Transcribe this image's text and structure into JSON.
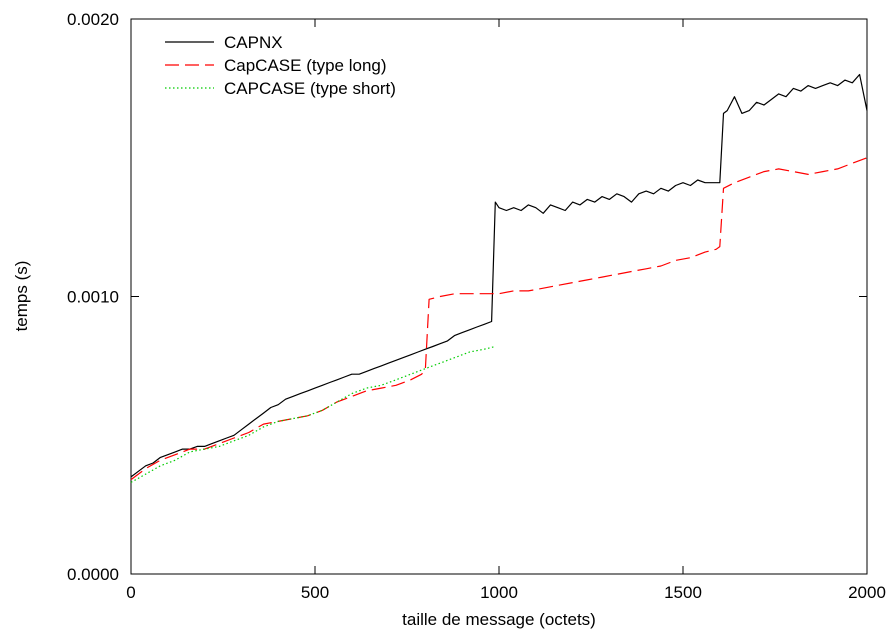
{
  "chart_data": {
    "type": "line",
    "xlabel": "taille de message (octets)",
    "ylabel": "temps (s)",
    "xlim": [
      0,
      2000
    ],
    "ylim": [
      0.0,
      0.002
    ],
    "x_ticks": [
      0,
      500,
      1000,
      1500,
      2000
    ],
    "x_tick_labels": [
      "0",
      "500",
      "1000",
      "1500",
      "2000"
    ],
    "y_ticks": [
      0.0,
      0.001,
      0.002
    ],
    "y_tick_labels": [
      "0.0000",
      "0.0010",
      "0.0020"
    ],
    "grid": false,
    "legend_position": "top-left",
    "series": [
      {
        "name": "CAPNX",
        "color": "#000000",
        "style": "solid",
        "points": [
          [
            0,
            0.00035
          ],
          [
            20,
            0.00037
          ],
          [
            40,
            0.00039
          ],
          [
            60,
            0.0004
          ],
          [
            80,
            0.00042
          ],
          [
            100,
            0.00043
          ],
          [
            120,
            0.00044
          ],
          [
            140,
            0.00045
          ],
          [
            160,
            0.00045
          ],
          [
            180,
            0.00046
          ],
          [
            200,
            0.00046
          ],
          [
            220,
            0.00047
          ],
          [
            240,
            0.00048
          ],
          [
            260,
            0.00049
          ],
          [
            280,
            0.0005
          ],
          [
            300,
            0.00052
          ],
          [
            320,
            0.00054
          ],
          [
            340,
            0.00056
          ],
          [
            360,
            0.00058
          ],
          [
            380,
            0.0006
          ],
          [
            400,
            0.00061
          ],
          [
            420,
            0.00063
          ],
          [
            440,
            0.00064
          ],
          [
            460,
            0.00065
          ],
          [
            480,
            0.00066
          ],
          [
            500,
            0.00067
          ],
          [
            520,
            0.00068
          ],
          [
            540,
            0.00069
          ],
          [
            560,
            0.0007
          ],
          [
            580,
            0.00071
          ],
          [
            600,
            0.00072
          ],
          [
            620,
            0.00072
          ],
          [
            640,
            0.00073
          ],
          [
            660,
            0.00074
          ],
          [
            680,
            0.00075
          ],
          [
            700,
            0.00076
          ],
          [
            720,
            0.00077
          ],
          [
            740,
            0.00078
          ],
          [
            760,
            0.00079
          ],
          [
            780,
            0.0008
          ],
          [
            800,
            0.00081
          ],
          [
            820,
            0.00082
          ],
          [
            840,
            0.00083
          ],
          [
            860,
            0.00084
          ],
          [
            880,
            0.00086
          ],
          [
            900,
            0.00087
          ],
          [
            920,
            0.00088
          ],
          [
            940,
            0.00089
          ],
          [
            960,
            0.0009
          ],
          [
            980,
            0.00091
          ],
          [
            990,
            0.00134
          ],
          [
            1000,
            0.00132
          ],
          [
            1020,
            0.00131
          ],
          [
            1040,
            0.00132
          ],
          [
            1060,
            0.00131
          ],
          [
            1080,
            0.00133
          ],
          [
            1100,
            0.00132
          ],
          [
            1120,
            0.0013
          ],
          [
            1140,
            0.00133
          ],
          [
            1160,
            0.00132
          ],
          [
            1180,
            0.00131
          ],
          [
            1200,
            0.00134
          ],
          [
            1220,
            0.00133
          ],
          [
            1240,
            0.00135
          ],
          [
            1260,
            0.00134
          ],
          [
            1280,
            0.00136
          ],
          [
            1300,
            0.00135
          ],
          [
            1320,
            0.00137
          ],
          [
            1340,
            0.00136
          ],
          [
            1360,
            0.00134
          ],
          [
            1380,
            0.00137
          ],
          [
            1400,
            0.00138
          ],
          [
            1420,
            0.00137
          ],
          [
            1440,
            0.00139
          ],
          [
            1460,
            0.00138
          ],
          [
            1480,
            0.0014
          ],
          [
            1500,
            0.00141
          ],
          [
            1520,
            0.0014
          ],
          [
            1540,
            0.00142
          ],
          [
            1560,
            0.00141
          ],
          [
            1580,
            0.00141
          ],
          [
            1600,
            0.00141
          ],
          [
            1610,
            0.00166
          ],
          [
            1620,
            0.00167
          ],
          [
            1640,
            0.00172
          ],
          [
            1660,
            0.00166
          ],
          [
            1680,
            0.00167
          ],
          [
            1700,
            0.0017
          ],
          [
            1720,
            0.00169
          ],
          [
            1740,
            0.00171
          ],
          [
            1760,
            0.00173
          ],
          [
            1780,
            0.00172
          ],
          [
            1800,
            0.00175
          ],
          [
            1820,
            0.00174
          ],
          [
            1840,
            0.00176
          ],
          [
            1860,
            0.00175
          ],
          [
            1880,
            0.00176
          ],
          [
            1900,
            0.00177
          ],
          [
            1920,
            0.00176
          ],
          [
            1940,
            0.00178
          ],
          [
            1960,
            0.00177
          ],
          [
            1980,
            0.0018
          ],
          [
            2000,
            0.00167
          ]
        ]
      },
      {
        "name": "CapCASE (type long)",
        "color": "#ff0000",
        "style": "dashed",
        "points": [
          [
            0,
            0.00034
          ],
          [
            40,
            0.00038
          ],
          [
            80,
            0.00041
          ],
          [
            120,
            0.00043
          ],
          [
            160,
            0.00045
          ],
          [
            200,
            0.00045
          ],
          [
            240,
            0.00047
          ],
          [
            280,
            0.00049
          ],
          [
            320,
            0.00051
          ],
          [
            360,
            0.00054
          ],
          [
            400,
            0.00055
          ],
          [
            440,
            0.00056
          ],
          [
            480,
            0.00057
          ],
          [
            520,
            0.00059
          ],
          [
            560,
            0.00062
          ],
          [
            600,
            0.00064
          ],
          [
            640,
            0.00066
          ],
          [
            680,
            0.00067
          ],
          [
            720,
            0.00068
          ],
          [
            760,
            0.0007
          ],
          [
            790,
            0.00072
          ],
          [
            800,
            0.00074
          ],
          [
            810,
            0.00099
          ],
          [
            840,
            0.001
          ],
          [
            880,
            0.00101
          ],
          [
            920,
            0.00101
          ],
          [
            960,
            0.00101
          ],
          [
            1000,
            0.00101
          ],
          [
            1040,
            0.00102
          ],
          [
            1080,
            0.00102
          ],
          [
            1120,
            0.00103
          ],
          [
            1160,
            0.00104
          ],
          [
            1200,
            0.00105
          ],
          [
            1240,
            0.00106
          ],
          [
            1280,
            0.00107
          ],
          [
            1320,
            0.00108
          ],
          [
            1360,
            0.00109
          ],
          [
            1400,
            0.0011
          ],
          [
            1440,
            0.00111
          ],
          [
            1480,
            0.00113
          ],
          [
            1520,
            0.00114
          ],
          [
            1560,
            0.00116
          ],
          [
            1590,
            0.00117
          ],
          [
            1600,
            0.00118
          ],
          [
            1610,
            0.00139
          ],
          [
            1640,
            0.00141
          ],
          [
            1680,
            0.00143
          ],
          [
            1720,
            0.00145
          ],
          [
            1760,
            0.00146
          ],
          [
            1800,
            0.00145
          ],
          [
            1840,
            0.00144
          ],
          [
            1880,
            0.00145
          ],
          [
            1920,
            0.00146
          ],
          [
            1960,
            0.00148
          ],
          [
            2000,
            0.0015
          ]
        ]
      },
      {
        "name": "CAPCASE (type short)",
        "color": "#00cc00",
        "style": "dotted",
        "points": [
          [
            0,
            0.00033
          ],
          [
            40,
            0.00036
          ],
          [
            80,
            0.00039
          ],
          [
            120,
            0.00041
          ],
          [
            160,
            0.00044
          ],
          [
            200,
            0.00045
          ],
          [
            240,
            0.00046
          ],
          [
            280,
            0.00048
          ],
          [
            320,
            0.0005
          ],
          [
            360,
            0.00053
          ],
          [
            400,
            0.00055
          ],
          [
            440,
            0.00056
          ],
          [
            480,
            0.00057
          ],
          [
            520,
            0.00059
          ],
          [
            560,
            0.00062
          ],
          [
            600,
            0.00065
          ],
          [
            640,
            0.00067
          ],
          [
            680,
            0.00068
          ],
          [
            720,
            0.0007
          ],
          [
            760,
            0.00072
          ],
          [
            800,
            0.00074
          ],
          [
            840,
            0.00076
          ],
          [
            880,
            0.00078
          ],
          [
            920,
            0.0008
          ],
          [
            960,
            0.00081
          ],
          [
            990,
            0.00082
          ]
        ]
      }
    ]
  }
}
